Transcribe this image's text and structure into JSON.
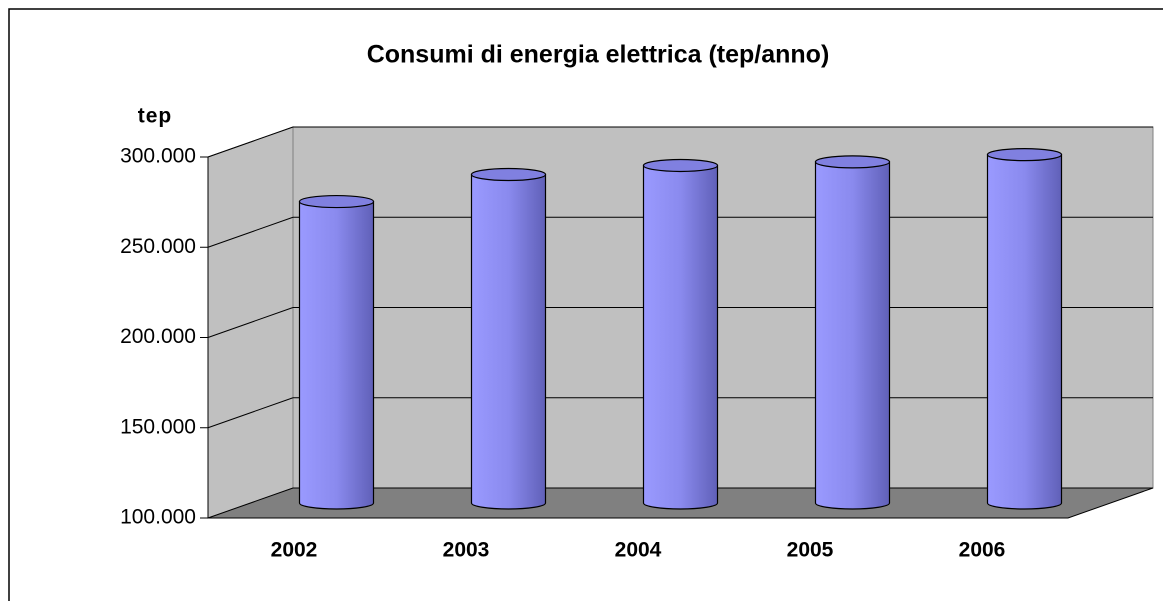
{
  "chart_data": {
    "type": "bar3d",
    "title": "Consumi di energia elettrica (tep/anno)",
    "ylabel": "tep",
    "categories": [
      "2002",
      "2003",
      "2004",
      "2005",
      "2006"
    ],
    "values": [
      267000,
      282000,
      287000,
      289000,
      293000
    ],
    "color": "#9999ff",
    "ylim": [
      100000,
      300000
    ],
    "yticks": [
      {
        "value": 100000,
        "label": "100.000"
      },
      {
        "value": 150000,
        "label": "150.000"
      },
      {
        "value": 200000,
        "label": "200.000"
      },
      {
        "value": 250000,
        "label": "250.000"
      },
      {
        "value": 300000,
        "label": "300.000"
      }
    ],
    "grid": true
  }
}
